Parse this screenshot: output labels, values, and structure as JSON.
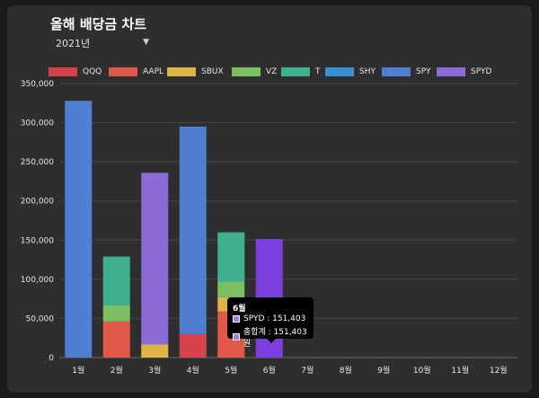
{
  "header": {
    "title": "올해 배당금 차트",
    "year_value": "2021년"
  },
  "colors": {
    "QQQ": "#d6434e",
    "AAPL": "#e0584a",
    "SBUX": "#e0b447",
    "VZ": "#7bbf62",
    "T": "#3fb08d",
    "SHY": "#3a8fd0",
    "SPY": "#4f7fd1",
    "SPYD": "#8a6bd6",
    "SPYD_hover": "#7b3fe0"
  },
  "chart_data": {
    "type": "bar",
    "stacked": true,
    "title": "올해 배당금 차트",
    "categories": [
      "1월",
      "2월",
      "3월",
      "4월",
      "5월",
      "6월",
      "7월",
      "8월",
      "9월",
      "10월",
      "11월",
      "12월"
    ],
    "ylim": [
      0,
      350000
    ],
    "yticks": [
      "0",
      "50,000",
      "100,000",
      "150,000",
      "200,000",
      "250,000",
      "300,000",
      "350,000"
    ],
    "ytick_values": [
      0,
      50000,
      100000,
      150000,
      200000,
      250000,
      300000,
      350000
    ],
    "legend_position": "top",
    "grid": true,
    "series": [
      {
        "name": "QQQ",
        "values": [
          0,
          0,
          0,
          30000,
          0,
          0,
          0,
          0,
          0,
          0,
          0,
          0
        ]
      },
      {
        "name": "AAPL",
        "values": [
          0,
          46000,
          0,
          0,
          59000,
          0,
          0,
          0,
          0,
          0,
          0,
          0
        ]
      },
      {
        "name": "SBUX",
        "values": [
          0,
          0,
          17000,
          0,
          18000,
          0,
          0,
          0,
          0,
          0,
          0,
          0
        ]
      },
      {
        "name": "VZ",
        "values": [
          0,
          21000,
          0,
          0,
          20000,
          0,
          0,
          0,
          0,
          0,
          0,
          0
        ]
      },
      {
        "name": "T",
        "values": [
          0,
          62000,
          0,
          0,
          63000,
          0,
          0,
          0,
          0,
          0,
          0,
          0
        ]
      },
      {
        "name": "SHY",
        "values": [
          0,
          0,
          0,
          0,
          0,
          0,
          0,
          0,
          0,
          0,
          0,
          0
        ]
      },
      {
        "name": "SPY",
        "values": [
          328000,
          0,
          0,
          265000,
          0,
          0,
          0,
          0,
          0,
          0,
          0,
          0
        ]
      },
      {
        "name": "SPYD",
        "values": [
          0,
          0,
          219000,
          0,
          0,
          151403,
          0,
          0,
          0,
          0,
          0,
          0
        ]
      }
    ]
  },
  "tooltip": {
    "title": "6월",
    "row1": "SPYD : 151,403",
    "row2": "총합계 : 151,403원"
  }
}
